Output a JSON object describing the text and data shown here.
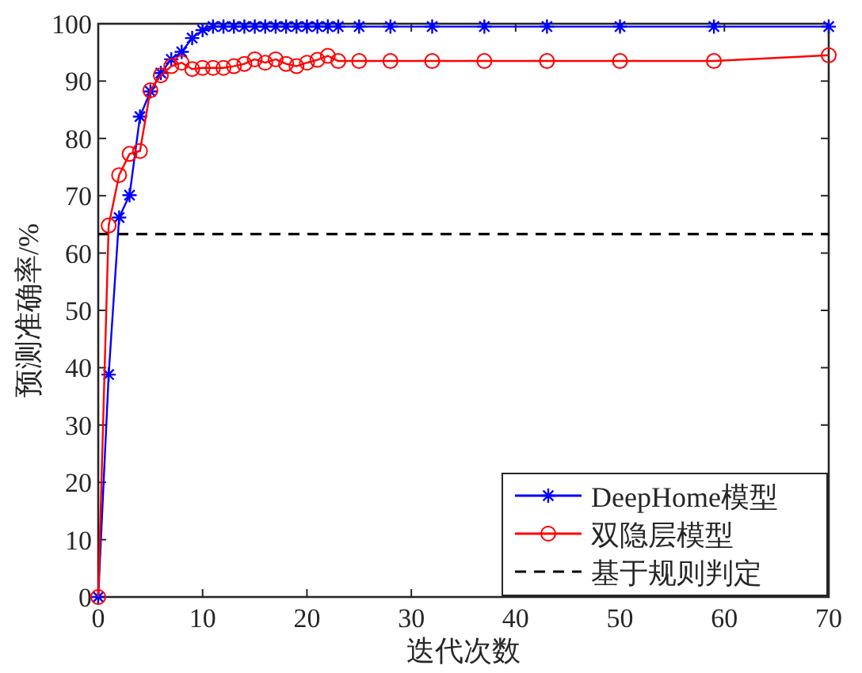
{
  "chart_data": {
    "type": "line",
    "xlabel": "迭代次数",
    "ylabel": "预测准确率/%",
    "xlim": [
      0,
      70
    ],
    "ylim": [
      0,
      100
    ],
    "xticks": [
      0,
      10,
      20,
      30,
      40,
      50,
      60,
      70
    ],
    "yticks": [
      0,
      10,
      20,
      30,
      40,
      50,
      60,
      70,
      80,
      90,
      100
    ],
    "grid": false,
    "legend": "bottom right",
    "x": [
      0,
      1,
      2,
      3,
      4,
      5,
      6,
      7,
      8,
      9,
      10,
      11,
      12,
      13,
      14,
      15,
      16,
      17,
      18,
      19,
      20,
      21,
      22,
      23,
      25,
      28,
      32,
      37,
      43,
      50,
      59,
      70
    ],
    "series": [
      {
        "name": "DeepHome模型",
        "color": "#0000ff",
        "marker": "cross",
        "values": [
          0,
          38.8,
          66.2,
          70.1,
          83.8,
          88.2,
          91.4,
          93.8,
          95.1,
          97.5,
          98.9,
          99.5,
          99.5,
          99.5,
          99.5,
          99.5,
          99.5,
          99.5,
          99.5,
          99.5,
          99.5,
          99.5,
          99.5,
          99.5,
          99.5,
          99.5,
          99.5,
          99.5,
          99.5,
          99.5,
          99.5,
          99.5
        ]
      },
      {
        "name": "双隐层模型",
        "color": "#ff0000",
        "marker": "circle",
        "values": [
          0,
          64.8,
          73.6,
          77.3,
          77.8,
          88.4,
          91.0,
          92.6,
          93.2,
          92.1,
          92.3,
          92.3,
          92.3,
          92.6,
          93.0,
          93.8,
          93.2,
          93.8,
          93.0,
          92.6,
          93.2,
          93.7,
          94.4,
          93.5,
          93.5,
          93.5,
          93.5,
          93.5,
          93.5,
          93.5,
          93.5,
          94.5
        ]
      }
    ],
    "ref_lines": [
      {
        "axis": "y",
        "value": 63.3,
        "label": "基于规则判定",
        "color": "#000000",
        "line_style": "dashed"
      }
    ]
  }
}
